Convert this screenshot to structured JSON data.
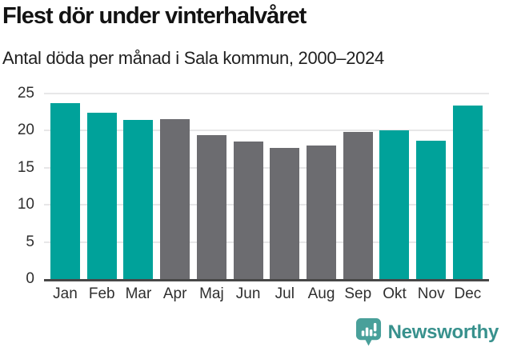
{
  "header": {
    "title": "Flest dör under vinterhalvåret",
    "subtitle": "Antal döda per månad i Sala kommun, 2000–2024"
  },
  "chart_data": {
    "type": "bar",
    "title": "Flest dör under vinterhalvåret",
    "subtitle": "Antal döda per månad i Sala kommun, 2000–2024",
    "categories": [
      "Jan",
      "Feb",
      "Mar",
      "Apr",
      "Maj",
      "Jun",
      "Jul",
      "Aug",
      "Sep",
      "Okt",
      "Nov",
      "Dec"
    ],
    "values": [
      23.7,
      22.4,
      21.4,
      21.5,
      19.4,
      18.5,
      17.7,
      18.0,
      19.8,
      20.0,
      18.6,
      23.4
    ],
    "bar_colors": [
      "teal",
      "teal",
      "teal",
      "gray",
      "gray",
      "gray",
      "gray",
      "gray",
      "gray",
      "teal",
      "teal",
      "teal"
    ],
    "colors": {
      "teal": "#00a29a",
      "gray": "#6c6c70"
    },
    "highlight_meaning": "winter-half-year months highlighted in teal",
    "yticks": [
      0,
      5,
      10,
      15,
      20,
      25
    ],
    "ylim": [
      0,
      25
    ],
    "xlabel": "",
    "ylabel": "",
    "grid": true,
    "legend": false
  },
  "footer": {
    "brand": "Newsworthy",
    "brand_color": "#38918d",
    "icon": "newsworthy-speech-bubble-bar-chart"
  }
}
